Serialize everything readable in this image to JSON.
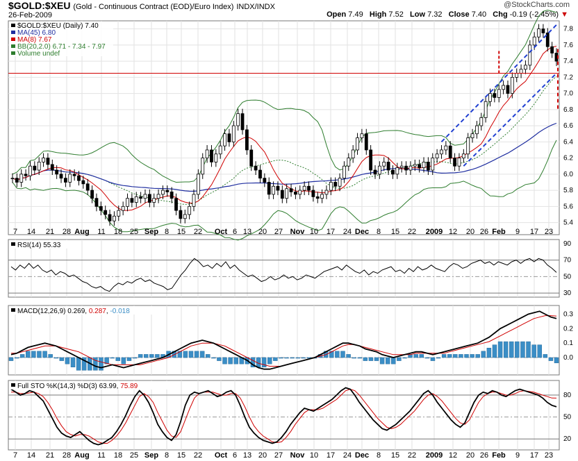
{
  "header": {
    "symbol": "$GOLD:$XEU",
    "description": "(Gold - Continuous Contract (EOD)/Euro Index)",
    "exchange": "INDX/INDX",
    "date": "26-Feb-2009",
    "site": "@StockCharts.com",
    "open_label": "Open",
    "open": "7.49",
    "high_label": "High",
    "high": "7.52",
    "low_label": "Low",
    "low": "7.32",
    "close_label": "Close",
    "close": "7.40",
    "chg_label": "Chg",
    "chg": "-0.19 (-2.45%)"
  },
  "colors": {
    "price_line": "#000000",
    "ma45": "#1f2ea0",
    "ma8": "#d00000",
    "bb": "#2e7d2e",
    "bb_mid": "#2e7d2e",
    "trend_channel": "#1f3fd1",
    "support_line": "#d00000",
    "rsi": "#000000",
    "macd": "#000000",
    "macd_signal": "#d00000",
    "macd_hist": "#3b8ec6",
    "sto_k": "#000000",
    "sto_d": "#d00000"
  },
  "panel_legends": {
    "price": [
      {
        "text": "$GOLD:$XEU (Daily) 7.40",
        "color": "#000000"
      },
      {
        "text": "MA(45) 6.80",
        "color": "#1f2ea0"
      },
      {
        "text": "MA(8) 7.67",
        "color": "#d00000"
      },
      {
        "text": "BB(20,2.0) 6.71 - 7.34 - 7.97",
        "color": "#2e7d2e"
      },
      {
        "text": "Volume undef",
        "color": "#2e7d2e"
      }
    ],
    "rsi": "RSI(14) 55.33",
    "macd_prefix": "MACD(12,26,9) 0.269, ",
    "macd_signal_val": "0.287",
    "macd_sep": ", ",
    "macd_hist_val": "-0.018",
    "sto_prefix": "Full STO %K(14,3) %D(3) 63.99, ",
    "sto_d_val": "75.89"
  },
  "chart_data": [
    {
      "type": "candlestick",
      "title": "$GOLD:$XEU (Daily)",
      "x_tick_labels": [
        "7",
        "14",
        "21",
        "28",
        "Aug",
        "11",
        "18",
        "25",
        "Sep",
        "8",
        "15",
        "22",
        "Oct",
        "6",
        "13",
        "20",
        "27",
        "Nov",
        "10",
        "17",
        "24",
        "Dec",
        "8",
        "15",
        "22",
        "2009",
        "12",
        "20",
        "26",
        "Feb",
        "9",
        "17",
        "23"
      ],
      "ylim": [
        5.25,
        7.9
      ],
      "y_ticks": [
        5.4,
        5.6,
        5.8,
        6.0,
        6.2,
        6.4,
        6.6,
        6.8,
        7.0,
        7.2,
        7.4,
        7.6,
        7.8
      ],
      "close_series": [
        5.95,
        5.9,
        6.0,
        5.98,
        6.1,
        6.05,
        6.15,
        6.2,
        6.12,
        6.05,
        6.0,
        5.95,
        5.9,
        6.0,
        5.98,
        5.92,
        5.88,
        5.8,
        5.7,
        5.6,
        5.55,
        5.5,
        5.42,
        5.48,
        5.55,
        5.6,
        5.7,
        5.65,
        5.72,
        5.7,
        5.75,
        5.65,
        5.7,
        5.75,
        5.8,
        5.78,
        5.7,
        5.55,
        5.45,
        5.5,
        5.6,
        5.75,
        6.0,
        6.2,
        6.3,
        6.15,
        6.25,
        6.35,
        6.5,
        6.4,
        6.6,
        6.75,
        6.55,
        6.3,
        6.1,
        6.05,
        5.95,
        5.9,
        5.75,
        5.85,
        5.8,
        5.7,
        5.82,
        5.78,
        5.75,
        5.8,
        5.85,
        5.8,
        5.72,
        5.7,
        5.75,
        5.8,
        5.9,
        5.85,
        5.95,
        6.1,
        6.2,
        6.3,
        6.45,
        6.5,
        6.3,
        6.05,
        6.0,
        6.1,
        6.15,
        6.05,
        6.0,
        6.08,
        6.1,
        6.05,
        6.1,
        6.12,
        6.08,
        6.15,
        6.05,
        6.2,
        6.25,
        6.3,
        6.35,
        6.2,
        6.1,
        6.2,
        6.25,
        6.45,
        6.5,
        6.6,
        6.7,
        6.9,
        7.0,
        6.95,
        7.05,
        7.1,
        7.0,
        7.2,
        7.25,
        7.3,
        7.35,
        7.6,
        7.7,
        7.8,
        7.75,
        7.58,
        7.5,
        7.4
      ],
      "overlays": {
        "ma45_last": 6.8,
        "ma8_last": 7.67,
        "bb": {
          "lower": 6.71,
          "middle": 7.34,
          "upper": 7.97
        },
        "horizontal_support": 7.25,
        "channel_upper": [
          [
            97,
            6.4
          ],
          [
            123,
            7.85
          ]
        ],
        "channel_lower": [
          [
            102,
            6.1
          ],
          [
            123,
            7.25
          ]
        ],
        "projection_target": 6.8
      }
    },
    {
      "type": "line",
      "title": "RSI(14)",
      "ylim": [
        25,
        95
      ],
      "y_ticks": [
        30,
        50,
        70,
        90
      ],
      "last": 55.33,
      "values": [
        62,
        58,
        64,
        60,
        66,
        60,
        64,
        58,
        55,
        58,
        52,
        56,
        54,
        50,
        52,
        48,
        44,
        42,
        38,
        36,
        38,
        34,
        32,
        38,
        42,
        40,
        44,
        42,
        46,
        48,
        44,
        46,
        42,
        40,
        38,
        34,
        36,
        44,
        52,
        58,
        66,
        72,
        68,
        62,
        64,
        60,
        66,
        62,
        68,
        60,
        64,
        58,
        54,
        50,
        52,
        48,
        44,
        46,
        50,
        46,
        48,
        52,
        48,
        50,
        46,
        48,
        52,
        50,
        48,
        52,
        56,
        58,
        60,
        62,
        58,
        64,
        60,
        56,
        54,
        58,
        52,
        56,
        54,
        58,
        60,
        62,
        56,
        58,
        54,
        60,
        56,
        62,
        58,
        60,
        64,
        60,
        58,
        56,
        62,
        66,
        64,
        60,
        62,
        66,
        68,
        70,
        66,
        68,
        64,
        68,
        66,
        64,
        68,
        70,
        66,
        70,
        72,
        68,
        72,
        70,
        64,
        60,
        55
      ]
    },
    {
      "type": "line",
      "title": "MACD(12,26,9)",
      "ylim": [
        -0.12,
        0.36
      ],
      "y_ticks": [
        0.0,
        0.1,
        0.2,
        0.3
      ],
      "macd_last": 0.269,
      "signal_last": 0.287,
      "hist_last": -0.018,
      "macd": [
        0.02,
        0.03,
        0.05,
        0.07,
        0.08,
        0.09,
        0.1,
        0.09,
        0.08,
        0.06,
        0.04,
        0.02,
        0.0,
        -0.02,
        -0.04,
        -0.06,
        -0.07,
        -0.06,
        -0.05,
        -0.06,
        -0.07,
        -0.06,
        -0.05,
        -0.04,
        -0.03,
        -0.02,
        -0.01,
        0.0,
        0.02,
        0.04,
        0.06,
        0.08,
        0.1,
        0.11,
        0.12,
        0.11,
        0.1,
        0.08,
        0.06,
        0.04,
        0.02,
        0.0,
        -0.02,
        -0.05,
        -0.07,
        -0.08,
        -0.08,
        -0.07,
        -0.06,
        -0.05,
        -0.04,
        -0.03,
        -0.02,
        -0.01,
        0.0,
        0.02,
        0.04,
        0.06,
        0.08,
        0.1,
        0.1,
        0.09,
        0.08,
        0.06,
        0.05,
        0.04,
        0.02,
        0.01,
        0.0,
        0.01,
        0.02,
        0.03,
        0.04,
        0.04,
        0.03,
        0.02,
        0.03,
        0.04,
        0.05,
        0.06,
        0.07,
        0.08,
        0.09,
        0.1,
        0.12,
        0.14,
        0.17,
        0.2,
        0.22,
        0.24,
        0.26,
        0.28,
        0.3,
        0.31,
        0.32,
        0.3,
        0.28,
        0.27
      ],
      "signal": [
        0.03,
        0.03,
        0.04,
        0.05,
        0.06,
        0.07,
        0.08,
        0.08,
        0.08,
        0.07,
        0.06,
        0.05,
        0.04,
        0.02,
        0.0,
        -0.02,
        -0.03,
        -0.04,
        -0.05,
        -0.05,
        -0.05,
        -0.05,
        -0.05,
        -0.05,
        -0.04,
        -0.03,
        -0.02,
        -0.01,
        0.0,
        0.02,
        0.04,
        0.06,
        0.08,
        0.09,
        0.1,
        0.1,
        0.1,
        0.09,
        0.08,
        0.06,
        0.04,
        0.02,
        0.0,
        -0.02,
        -0.04,
        -0.05,
        -0.06,
        -0.06,
        -0.06,
        -0.05,
        -0.04,
        -0.03,
        -0.02,
        -0.01,
        0.0,
        0.01,
        0.02,
        0.04,
        0.06,
        0.08,
        0.09,
        0.09,
        0.08,
        0.07,
        0.06,
        0.05,
        0.04,
        0.03,
        0.02,
        0.02,
        0.02,
        0.02,
        0.03,
        0.03,
        0.03,
        0.03,
        0.03,
        0.03,
        0.04,
        0.05,
        0.06,
        0.07,
        0.08,
        0.09,
        0.1,
        0.11,
        0.13,
        0.15,
        0.17,
        0.19,
        0.21,
        0.23,
        0.25,
        0.27,
        0.28,
        0.29,
        0.29,
        0.287
      ]
    },
    {
      "type": "line",
      "title": "Full STO %K(14,3) %D(3)",
      "ylim": [
        5,
        100
      ],
      "y_ticks": [
        20,
        50,
        80
      ],
      "k_last": 63.99,
      "d_last": 75.89,
      "k": [
        88,
        84,
        80,
        82,
        86,
        84,
        78,
        72,
        60,
        48,
        36,
        28,
        24,
        22,
        26,
        30,
        24,
        18,
        14,
        12,
        14,
        18,
        22,
        30,
        40,
        52,
        66,
        78,
        86,
        80,
        70,
        56,
        40,
        30,
        22,
        18,
        26,
        44,
        66,
        80,
        84,
        82,
        84,
        86,
        82,
        78,
        80,
        84,
        86,
        80,
        66,
        50,
        36,
        28,
        22,
        18,
        16,
        14,
        16,
        22,
        30,
        40,
        48,
        56,
        62,
        60,
        58,
        62,
        66,
        70,
        74,
        80,
        86,
        90,
        88,
        80,
        70,
        62,
        54,
        46,
        40,
        34,
        32,
        36,
        40,
        46,
        52,
        58,
        66,
        74,
        82,
        86,
        80,
        70,
        62,
        54,
        46,
        40,
        36,
        42,
        56,
        70,
        80,
        84,
        82,
        86,
        84,
        80,
        78,
        82,
        86,
        88,
        86,
        84,
        82,
        80,
        76,
        70,
        66,
        64
      ],
      "d": [
        84,
        84,
        82,
        82,
        83,
        84,
        82,
        78,
        70,
        60,
        48,
        38,
        30,
        26,
        24,
        26,
        26,
        24,
        20,
        16,
        14,
        14,
        18,
        24,
        32,
        42,
        54,
        66,
        78,
        82,
        78,
        70,
        56,
        44,
        32,
        24,
        22,
        30,
        46,
        62,
        76,
        82,
        84,
        84,
        84,
        82,
        80,
        80,
        82,
        82,
        76,
        64,
        50,
        38,
        30,
        24,
        20,
        16,
        15,
        16,
        22,
        30,
        40,
        48,
        56,
        60,
        60,
        60,
        62,
        66,
        70,
        74,
        80,
        86,
        88,
        86,
        80,
        72,
        64,
        56,
        48,
        42,
        36,
        34,
        36,
        40,
        46,
        52,
        58,
        66,
        74,
        80,
        82,
        78,
        72,
        64,
        56,
        48,
        42,
        40,
        46,
        58,
        70,
        78,
        82,
        84,
        84,
        82,
        80,
        80,
        82,
        85,
        86,
        85,
        84,
        82,
        80,
        78,
        76,
        75.89
      ]
    }
  ]
}
